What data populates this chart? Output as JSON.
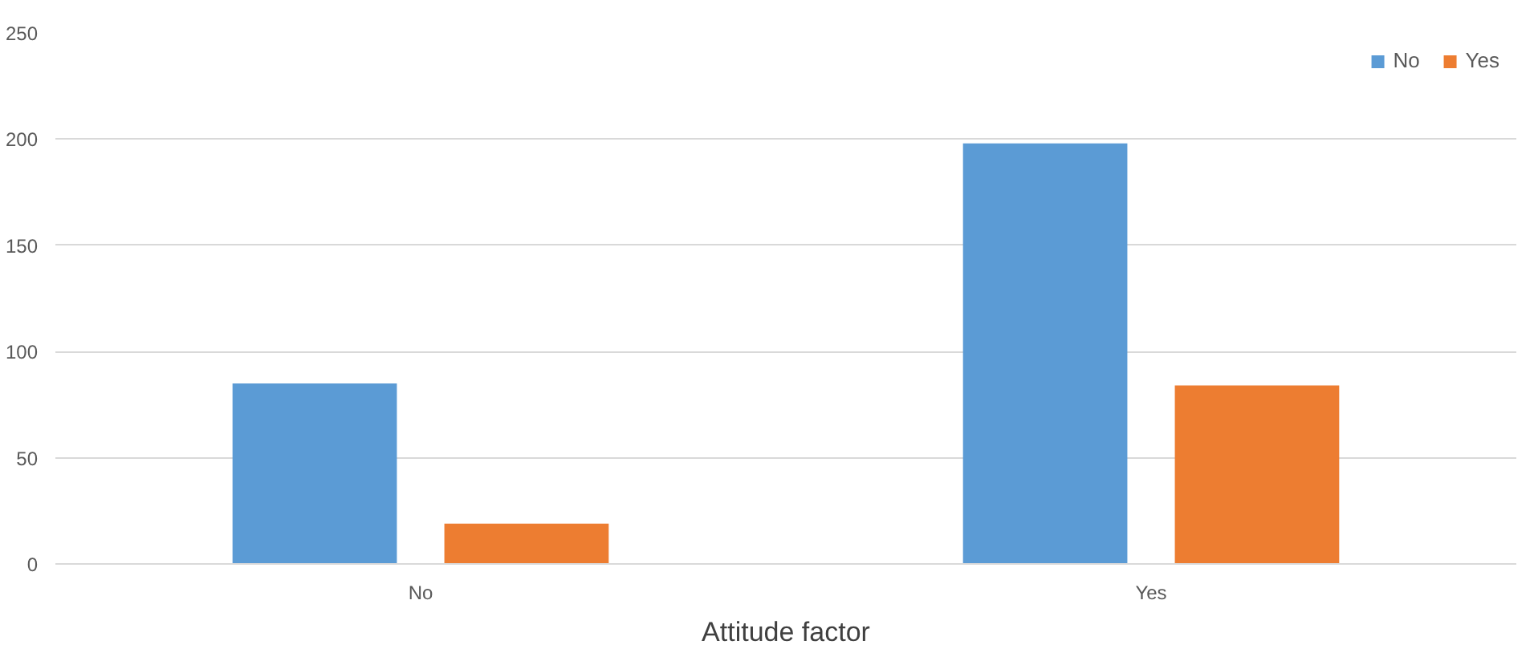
{
  "chart_data": {
    "type": "bar",
    "xlabel": "Attitude factor",
    "categories": [
      "No",
      "Yes"
    ],
    "series": [
      {
        "name": "No",
        "color": "#5b9bd5",
        "values": [
          85,
          198
        ]
      },
      {
        "name": "Yes",
        "color": "#ed7d31",
        "values": [
          19,
          84
        ]
      }
    ],
    "ylim": [
      0,
      250
    ],
    "yticks": [
      0,
      50,
      100,
      150,
      200,
      250
    ],
    "grid": "y",
    "legend": "top right"
  }
}
